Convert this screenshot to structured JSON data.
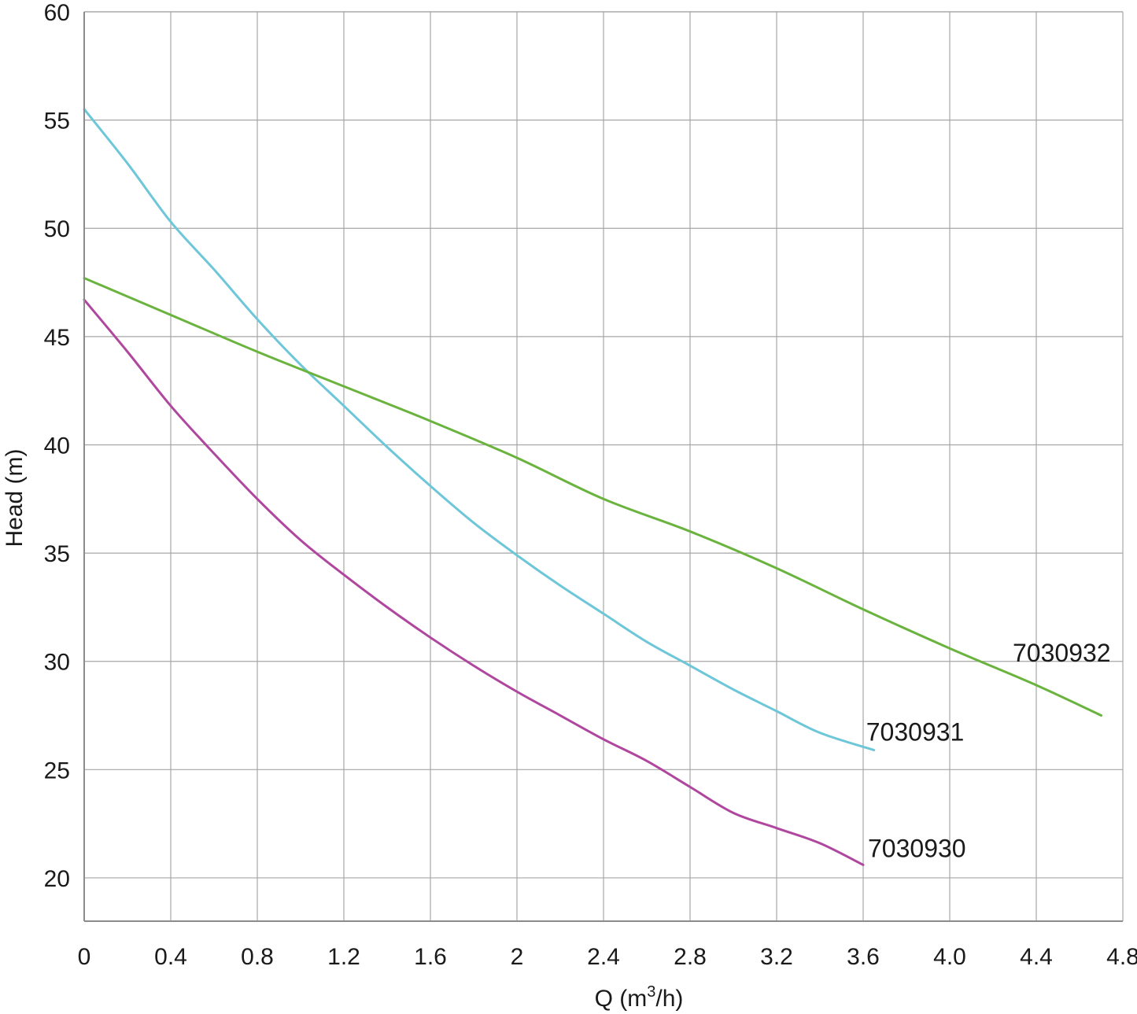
{
  "chart_data": {
    "type": "line",
    "title": "",
    "xlabel_prefix": "Q (m",
    "xlabel_sup": "3",
    "xlabel_suffix": "/h)",
    "ylabel": "Head (m)",
    "xlim": [
      0,
      4.8
    ],
    "ylim": [
      18,
      60
    ],
    "grid": true,
    "x_ticks": [
      {
        "value": 0,
        "label": "0"
      },
      {
        "value": 0.4,
        "label": "0.4"
      },
      {
        "value": 0.8,
        "label": "0.8"
      },
      {
        "value": 1.2,
        "label": "1.2"
      },
      {
        "value": 1.6,
        "label": "1.6"
      },
      {
        "value": 2.0,
        "label": "2"
      },
      {
        "value": 2.4,
        "label": "2.4"
      },
      {
        "value": 2.8,
        "label": "2.8"
      },
      {
        "value": 3.2,
        "label": "3.2"
      },
      {
        "value": 3.6,
        "label": "3.6"
      },
      {
        "value": 4.0,
        "label": "4.0"
      },
      {
        "value": 4.4,
        "label": "4.4"
      },
      {
        "value": 4.8,
        "label": "4.8"
      }
    ],
    "y_ticks": [
      {
        "value": 20,
        "label": "20"
      },
      {
        "value": 25,
        "label": "25"
      },
      {
        "value": 30,
        "label": "30"
      },
      {
        "value": 35,
        "label": "35"
      },
      {
        "value": 40,
        "label": "40"
      },
      {
        "value": 45,
        "label": "45"
      },
      {
        "value": 50,
        "label": "50"
      },
      {
        "value": 55,
        "label": "55"
      },
      {
        "value": 60,
        "label": "60"
      }
    ],
    "series": [
      {
        "name": "7030930",
        "color": "#b0479e",
        "x": [
          0,
          0.2,
          0.4,
          0.6,
          0.8,
          1.0,
          1.2,
          1.4,
          1.6,
          1.8,
          2.0,
          2.2,
          2.4,
          2.6,
          2.8,
          3.0,
          3.2,
          3.4,
          3.6
        ],
        "y": [
          46.7,
          44.3,
          41.8,
          39.6,
          37.5,
          35.6,
          34.0,
          32.5,
          31.1,
          29.8,
          28.6,
          27.5,
          26.4,
          25.4,
          24.2,
          23.0,
          22.3,
          21.6,
          20.6
        ]
      },
      {
        "name": "7030931",
        "color": "#6ec6d9",
        "x": [
          0,
          0.2,
          0.4,
          0.6,
          0.8,
          1.0,
          1.2,
          1.4,
          1.6,
          1.8,
          2.0,
          2.2,
          2.4,
          2.6,
          2.8,
          3.0,
          3.2,
          3.4,
          3.65
        ],
        "y": [
          55.5,
          53.0,
          50.3,
          48.1,
          45.8,
          43.7,
          41.8,
          39.9,
          38.1,
          36.4,
          34.9,
          33.5,
          32.2,
          30.9,
          29.8,
          28.7,
          27.7,
          26.7,
          25.9
        ]
      },
      {
        "name": "7030932",
        "color": "#6bb33f",
        "x": [
          0,
          0.4,
          0.8,
          1.2,
          1.6,
          2.0,
          2.4,
          2.8,
          3.2,
          3.6,
          4.0,
          4.4,
          4.7
        ],
        "y": [
          47.7,
          46.0,
          44.3,
          42.7,
          41.1,
          39.4,
          37.5,
          36.0,
          34.3,
          32.4,
          30.6,
          28.9,
          27.5
        ]
      }
    ],
    "series_labels": [
      {
        "text": "7030930",
        "near_x": 3.6,
        "near_y": 20.6
      },
      {
        "text": "7030931",
        "near_x": 3.65,
        "near_y": 25.9
      },
      {
        "text": "7030932",
        "near_x": 4.4,
        "near_y": 28.9
      }
    ]
  }
}
